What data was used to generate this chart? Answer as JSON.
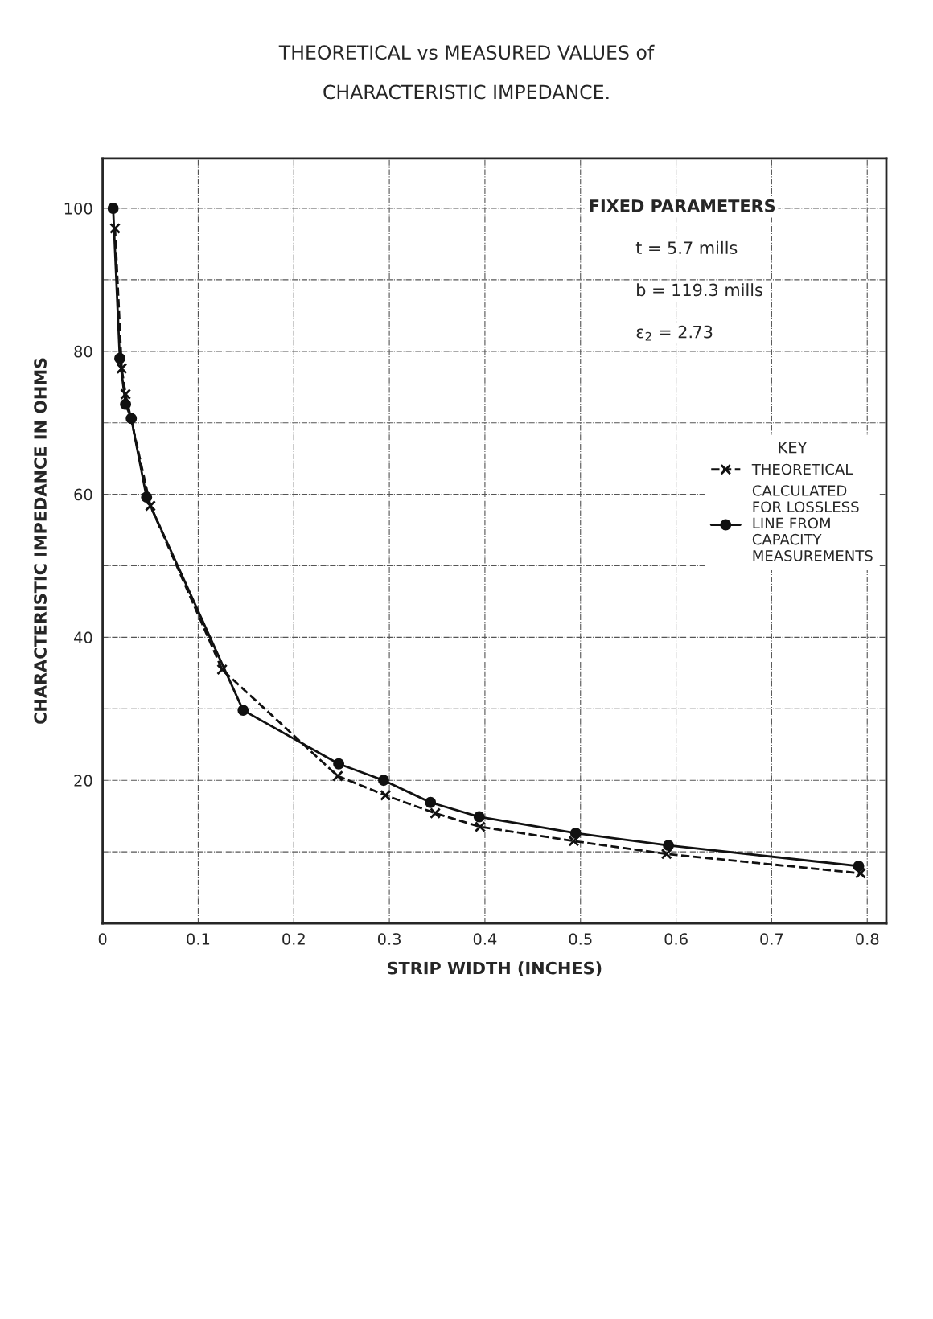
{
  "chart_data": {
    "type": "line",
    "title": "THEORETICAL vs MEASURED VALUES of",
    "subtitle": "CHARACTERISTIC IMPEDANCE.",
    "xlabel": "STRIP WIDTH (INCHES)",
    "ylabel": "CHARACTERISTIC IMPEDANCE IN OHMS",
    "legend_title": "KEY",
    "series": [
      {
        "name": "THEORETICAL",
        "color": "#111111",
        "marker": "cross",
        "line_style": "dashed",
        "x": [
          0.013,
          0.02,
          0.024,
          0.05,
          0.125,
          0.246,
          0.296,
          0.348,
          0.395,
          0.493,
          0.59,
          0.793
        ],
        "values": [
          97.2,
          77.6,
          74,
          58.4,
          35.5,
          20.6,
          17.9,
          15.4,
          13.5,
          11.5,
          9.7,
          7.0
        ]
      },
      {
        "name": "CALCULATED FOR LOSSLESS LINE FROM CAPACITY MEASUREMENTS",
        "color": "#111111",
        "marker": "circle",
        "line_style": "solid",
        "x": [
          0.011,
          0.018,
          0.024,
          0.03,
          0.046,
          0.147,
          0.247,
          0.294,
          0.343,
          0.394,
          0.495,
          0.592,
          0.791
        ],
        "values": [
          100,
          79,
          72.6,
          70.6,
          59.6,
          29.8,
          22.3,
          20.0,
          16.9,
          14.9,
          12.6,
          10.9,
          8.0
        ]
      }
    ],
    "annotations": [
      "FIXED PARAMETERS",
      "t = 5.7 mills",
      "b = 119.3 mills",
      "ε$_{2}$ = 2.73"
    ],
    "xlim": [
      0,
      0.82
    ],
    "ylim": [
      0,
      107
    ],
    "xticks": [
      0,
      0.1,
      0.2,
      0.3,
      0.4,
      0.5,
      0.6,
      0.7,
      0.8
    ],
    "yticks": [
      {
        "value": 10,
        "label": null
      },
      20,
      {
        "value": 30,
        "label": null
      },
      40,
      {
        "value": 50,
        "label": null
      },
      60,
      {
        "value": 70,
        "label": null
      },
      80,
      {
        "value": 90,
        "label": null
      },
      100
    ],
    "grid": true,
    "legend": "center right"
  }
}
